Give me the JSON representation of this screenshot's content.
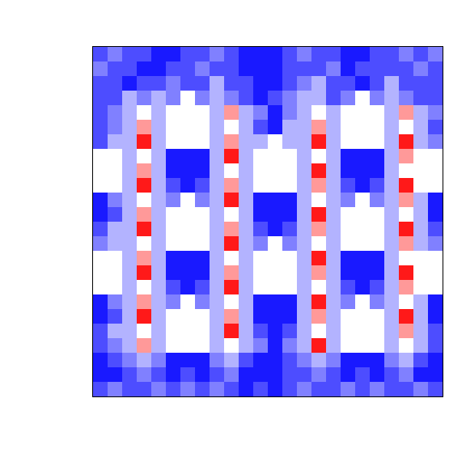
{
  "chart_data": {
    "type": "heatmap",
    "xlim": [
      0,
      1
    ],
    "ylim": [
      0,
      1
    ],
    "zlim": [
      -1,
      1
    ],
    "tick_labels": false,
    "grid": false,
    "z": [
      [
        -0.7,
        -0.5,
        -0.7,
        -0.7,
        -0.9,
        -0.9,
        -0.7,
        -0.7,
        -0.5,
        -0.7,
        -0.9,
        -0.9,
        -0.9,
        -0.7,
        -0.5,
        -0.7,
        -0.7,
        -0.9,
        -0.9,
        -0.7,
        -0.7,
        -0.5,
        -0.7,
        -0.5
      ],
      [
        -0.5,
        -0.7,
        -0.7,
        -0.9,
        -0.9,
        -0.7,
        -0.7,
        -0.5,
        -0.7,
        -0.7,
        -0.9,
        -0.9,
        -0.9,
        -0.7,
        -0.7,
        -0.7,
        -0.5,
        -0.9,
        -0.7,
        -0.7,
        -0.7,
        -0.7,
        -0.5,
        -0.7
      ],
      [
        -0.7,
        -0.7,
        -0.9,
        -0.7,
        -0.7,
        -0.5,
        -0.7,
        -0.7,
        -0.3,
        -0.7,
        -0.7,
        -0.9,
        -0.9,
        -0.7,
        -0.5,
        -0.3,
        -0.7,
        -0.7,
        -0.9,
        -0.7,
        -0.3,
        -0.7,
        -0.7,
        -0.7
      ],
      [
        -0.7,
        -0.7,
        -0.3,
        -0.5,
        -0.3,
        -0.5,
        null,
        -0.5,
        -0.3,
        -0.5,
        -0.7,
        -0.9,
        -0.7,
        -0.5,
        -0.3,
        -0.3,
        -0.7,
        -0.5,
        null,
        -0.5,
        -0.3,
        -0.5,
        -0.7,
        -0.7
      ],
      [
        -0.7,
        -0.5,
        -0.3,
        0,
        -0.3,
        null,
        null,
        null,
        -0.3,
        0.4,
        -0.3,
        -0.5,
        -0.9,
        -0.5,
        -0.3,
        0,
        -0.3,
        null,
        null,
        null,
        -0.3,
        0.4,
        -0.3,
        -0.5
      ],
      [
        -0.7,
        -0.5,
        -0.3,
        0.4,
        -0.3,
        null,
        null,
        null,
        -0.3,
        0,
        -0.3,
        -0.7,
        -0.9,
        -0.3,
        -0.3,
        0.4,
        -0.3,
        null,
        null,
        null,
        -0.3,
        0,
        -0.3,
        -0.7
      ],
      [
        -0.7,
        -0.3,
        -0.3,
        0.9,
        -0.3,
        null,
        null,
        null,
        -0.3,
        0.4,
        -0.3,
        -0.3,
        null,
        -0.3,
        -0.3,
        0.9,
        -0.3,
        null,
        null,
        null,
        -0.3,
        0.9,
        -0.3,
        -0.5
      ],
      [
        null,
        null,
        -0.3,
        0,
        -0.3,
        -0.9,
        -0.9,
        -0.9,
        -0.3,
        0.9,
        -0.3,
        null,
        null,
        null,
        -0.3,
        0,
        -0.3,
        -0.9,
        -0.9,
        -0.9,
        -0.3,
        0.4,
        null,
        null
      ],
      [
        null,
        null,
        -0.3,
        0.4,
        -0.3,
        -0.9,
        -0.9,
        -0.9,
        -0.3,
        0,
        -0.3,
        null,
        null,
        null,
        -0.3,
        0.9,
        -0.3,
        -0.9,
        -0.9,
        -0.9,
        -0.3,
        0,
        null,
        null
      ],
      [
        null,
        null,
        -0.3,
        0.9,
        -0.3,
        -0.7,
        -0.9,
        -0.7,
        -0.3,
        0.4,
        -0.3,
        null,
        null,
        null,
        -0.3,
        0.4,
        -0.3,
        -0.7,
        -0.9,
        -0.7,
        -0.3,
        0.9,
        null,
        null
      ],
      [
        -0.9,
        -0.5,
        -0.3,
        0,
        -0.3,
        -0.5,
        null,
        -0.5,
        -0.3,
        0.9,
        -0.3,
        -0.9,
        -0.9,
        -0.9,
        -0.3,
        0,
        -0.3,
        -0.5,
        null,
        -0.5,
        -0.3,
        0.4,
        -0.3,
        -0.9
      ],
      [
        -0.9,
        -0.7,
        -0.3,
        0.4,
        -0.3,
        null,
        null,
        null,
        -0.3,
        0,
        -0.3,
        -0.9,
        -0.9,
        -0.9,
        -0.3,
        0.9,
        -0.3,
        null,
        null,
        null,
        -0.3,
        0,
        -0.3,
        -0.9
      ],
      [
        -0.7,
        -0.3,
        -0.3,
        0.9,
        -0.3,
        null,
        null,
        null,
        -0.3,
        0.4,
        -0.3,
        -0.7,
        -0.9,
        -0.7,
        -0.3,
        0.4,
        -0.3,
        null,
        null,
        null,
        -0.3,
        0.9,
        -0.3,
        -0.7
      ],
      [
        -0.5,
        -0.3,
        -0.3,
        0,
        -0.3,
        null,
        null,
        null,
        -0.3,
        0.9,
        -0.3,
        -0.5,
        null,
        -0.5,
        -0.3,
        0,
        -0.3,
        null,
        null,
        null,
        -0.3,
        0.4,
        -0.3,
        -0.5
      ],
      [
        null,
        null,
        -0.3,
        0.4,
        -0.3,
        -0.9,
        -0.9,
        -0.9,
        -0.3,
        0,
        -0.3,
        null,
        null,
        null,
        -0.3,
        0.9,
        -0.3,
        -0.9,
        -0.9,
        -0.9,
        -0.3,
        0,
        null,
        null
      ],
      [
        null,
        null,
        -0.3,
        0.9,
        -0.3,
        -0.9,
        -0.9,
        -0.9,
        -0.3,
        0.4,
        -0.3,
        null,
        null,
        null,
        -0.3,
        0.4,
        -0.3,
        -0.9,
        -0.9,
        -0.9,
        -0.3,
        0.9,
        null,
        null
      ],
      [
        null,
        null,
        -0.3,
        0,
        -0.3,
        -0.7,
        -0.9,
        -0.7,
        -0.3,
        0.9,
        -0.3,
        null,
        null,
        null,
        -0.3,
        0,
        -0.3,
        -0.7,
        -0.9,
        -0.7,
        -0.3,
        0.4,
        null,
        null
      ],
      [
        -0.9,
        -0.5,
        -0.3,
        0.4,
        -0.3,
        -0.5,
        null,
        -0.5,
        -0.3,
        0,
        -0.3,
        -0.9,
        -0.9,
        -0.9,
        -0.3,
        0.9,
        -0.3,
        -0.5,
        null,
        -0.5,
        -0.3,
        0,
        -0.3,
        -0.9
      ],
      [
        -0.9,
        -0.7,
        -0.3,
        0.9,
        -0.3,
        null,
        null,
        null,
        -0.3,
        0.4,
        -0.3,
        -0.9,
        -0.9,
        -0.9,
        -0.3,
        0.4,
        -0.3,
        null,
        null,
        null,
        -0.3,
        0.9,
        -0.3,
        -0.9
      ],
      [
        -0.7,
        -0.3,
        -0.3,
        0,
        -0.3,
        null,
        null,
        null,
        -0.3,
        0.9,
        -0.3,
        -0.7,
        -0.9,
        -0.7,
        -0.3,
        0,
        -0.3,
        null,
        null,
        null,
        -0.3,
        0.4,
        -0.3,
        -0.7
      ],
      [
        -0.7,
        -0.5,
        -0.3,
        0.4,
        -0.3,
        null,
        null,
        null,
        -0.3,
        0,
        -0.3,
        -0.5,
        -0.9,
        -0.5,
        -0.3,
        0.9,
        -0.3,
        null,
        null,
        null,
        -0.3,
        0,
        -0.3,
        -0.7
      ],
      [
        -0.9,
        -0.7,
        -0.5,
        -0.3,
        -0.5,
        -0.9,
        -0.9,
        -0.9,
        -0.5,
        -0.3,
        -0.7,
        -0.9,
        -0.9,
        -0.7,
        -0.5,
        -0.3,
        -0.5,
        -0.9,
        -0.9,
        -0.9,
        -0.5,
        -0.3,
        -0.7,
        -0.9
      ],
      [
        -0.9,
        -0.9,
        -0.7,
        -0.5,
        -0.7,
        -0.9,
        -0.7,
        -0.9,
        -0.7,
        -0.5,
        -0.9,
        -0.9,
        -0.9,
        -0.7,
        -0.7,
        -0.5,
        -0.7,
        -0.9,
        -0.7,
        -0.9,
        -0.7,
        -0.5,
        -0.9,
        -0.9
      ],
      [
        -0.7,
        -0.5,
        -0.7,
        -0.7,
        -0.5,
        -0.7,
        -0.5,
        -0.7,
        -0.5,
        -0.7,
        -0.9,
        -0.7,
        -0.9,
        -0.7,
        -0.5,
        -0.7,
        -0.7,
        -0.5,
        -0.7,
        -0.5,
        -0.7,
        -0.7,
        -0.5,
        -0.7
      ]
    ]
  }
}
